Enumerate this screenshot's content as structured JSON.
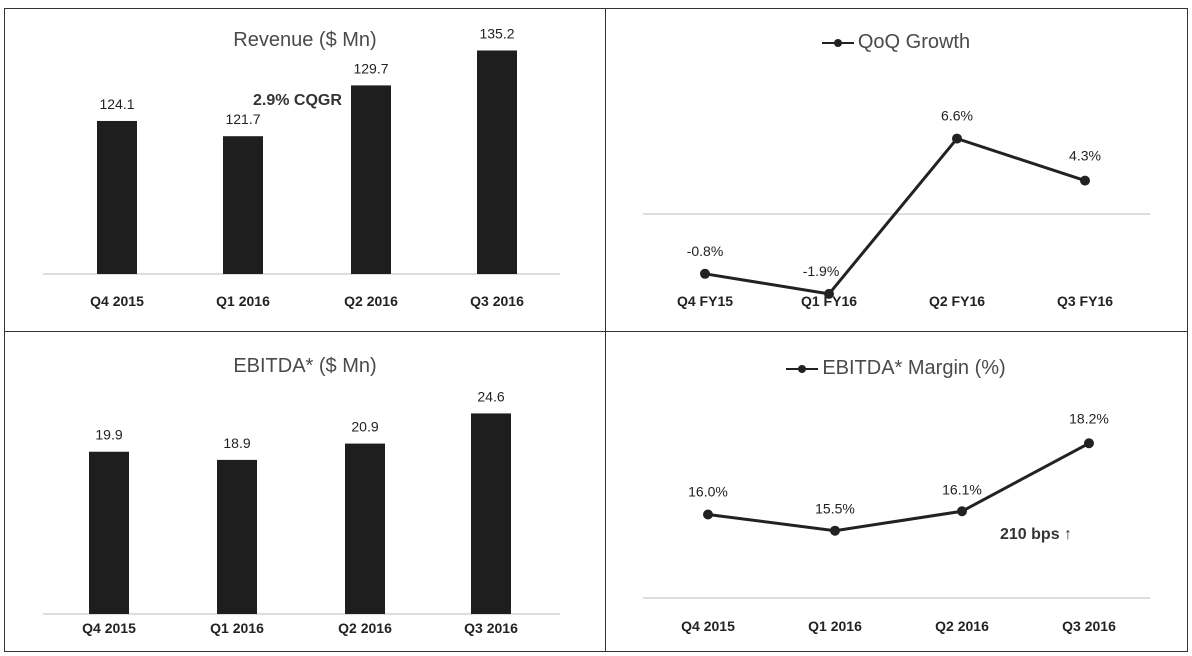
{
  "colors": {
    "bar": "#1e1e1e",
    "line": "#222222",
    "axis": "#bdbdbd",
    "border": "#333333"
  },
  "chart_data": [
    {
      "type": "bar",
      "title": "Revenue ($ Mn)",
      "annotation": "2.9% CQGR",
      "categories": [
        "Q4 2015",
        "Q1 2016",
        "Q2 2016",
        "Q3 2016"
      ],
      "values": [
        124.1,
        121.7,
        129.7,
        135.2
      ],
      "value_labels": [
        "124.1",
        "121.7",
        "129.7",
        "135.2"
      ],
      "ylim": [
        100,
        140
      ]
    },
    {
      "type": "line",
      "title": "QoQ Growth",
      "legend": [
        "QoQ Growth"
      ],
      "categories": [
        "Q4 FY15",
        "Q1 FY16",
        "Q2 FY16",
        "Q3 FY16"
      ],
      "values": [
        -0.8,
        -1.9,
        6.6,
        4.3
      ],
      "value_labels": [
        "-0.8%",
        "-1.9%",
        "6.6%",
        "4.3%"
      ],
      "ylim": [
        -3,
        8
      ]
    },
    {
      "type": "bar",
      "title": "EBITDA* ($ Mn)",
      "categories": [
        "Q4 2015",
        "Q1 2016",
        "Q2 2016",
        "Q3 2016"
      ],
      "values": [
        19.9,
        18.9,
        20.9,
        24.6
      ],
      "value_labels": [
        "19.9",
        "18.9",
        "20.9",
        "24.6"
      ],
      "ylim": [
        0,
        26
      ]
    },
    {
      "type": "line",
      "title": "EBITDA* Margin (%)",
      "legend": [
        "EBITDA* Margin (%)"
      ],
      "annotation": "210 bps ↑",
      "categories": [
        "Q4 2015",
        "Q1 2016",
        "Q2 2016",
        "Q3 2016"
      ],
      "values": [
        16.0,
        15.5,
        16.1,
        18.2
      ],
      "value_labels": [
        "16.0%",
        "15.5%",
        "16.1%",
        "18.2%"
      ],
      "ylim": [
        12,
        20
      ]
    }
  ]
}
